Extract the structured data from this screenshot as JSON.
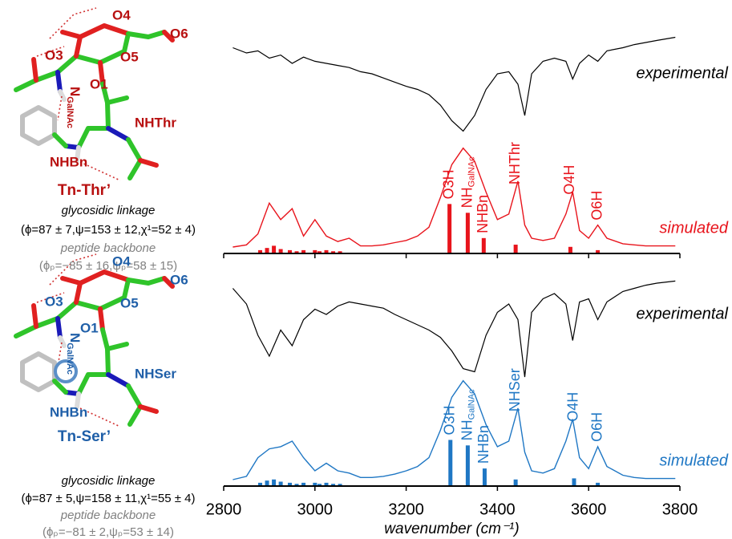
{
  "structures": [
    {
      "labels": [
        "O3",
        "O4",
        "O6",
        "O5",
        "O1",
        {
          "text": "N",
          "sub": "GalNAc"
        },
        "NHThr",
        "NHBn"
      ],
      "name": "Tn-Thr’",
      "linkage": "glycosidic linkage",
      "linkage_values": "(ϕ=87 ± 7,ψ=153 ± 12,χ¹=52 ± 4)",
      "backbone": "peptide backbone",
      "backbone_values": "(ϕₚ=−85 ± 16,ψₚ=58 ± 15)"
    },
    {
      "labels": [
        "O3",
        "O4",
        "O6",
        "O5",
        "O1",
        {
          "text": "N",
          "sub": "GalNAc"
        },
        "NHSer",
        "NHBn"
      ],
      "name": "Tn-Ser’",
      "linkage": "glycosidic linkage",
      "linkage_values": "(ϕ=87 ± 5,ψ=158 ± 11,χ¹=55 ± 4)",
      "backbone": "peptide backbone",
      "backbone_values": "(ϕₚ=−81 ± 2,ψₚ=53 ± 14)"
    }
  ],
  "chart_data": [
    {
      "type": "spectrum",
      "x": [
        2820,
        2850,
        2875,
        2900,
        2925,
        2950,
        2975,
        3000,
        3025,
        3050,
        3075,
        3100,
        3125,
        3150,
        3175,
        3200,
        3225,
        3250,
        3275,
        3300,
        3325,
        3350,
        3375,
        3400,
        3425,
        3445,
        3460,
        3475,
        3500,
        3525,
        3550,
        3565,
        3580,
        3600,
        3620,
        3640,
        3675,
        3700,
        3725,
        3750,
        3790
      ],
      "series": [
        {
          "name": "experimental",
          "color": "#000000",
          "values": [
            0.85,
            0.8,
            0.82,
            0.75,
            0.78,
            0.7,
            0.76,
            0.72,
            0.7,
            0.68,
            0.66,
            0.62,
            0.6,
            0.56,
            0.52,
            0.48,
            0.45,
            0.4,
            0.3,
            0.15,
            0.05,
            0.2,
            0.45,
            0.6,
            0.62,
            0.5,
            0.2,
            0.6,
            0.72,
            0.75,
            0.72,
            0.55,
            0.7,
            0.78,
            0.72,
            0.82,
            0.85,
            0.88,
            0.9,
            0.92,
            0.95
          ]
        },
        {
          "name": "simulated",
          "color": "#e8141c",
          "values": [
            0,
            0.02,
            0.12,
            0.4,
            0.25,
            0.35,
            0.1,
            0.25,
            0.1,
            0.05,
            0.08,
            0.01,
            0.01,
            0.02,
            0.04,
            0.06,
            0.1,
            0.18,
            0.45,
            0.75,
            0.9,
            0.78,
            0.5,
            0.25,
            0.3,
            0.6,
            0.2,
            0.08,
            0.06,
            0.08,
            0.3,
            0.5,
            0.15,
            0.08,
            0.2,
            0.08,
            0.03,
            0.02,
            0.01,
            0.01,
            0.01
          ]
        }
      ],
      "sticks": {
        "x": [
          3295,
          3335,
          3370,
          3440,
          3560,
          3620,
          2880,
          2895,
          2910,
          2925,
          2945,
          2960,
          2975,
          3000,
          3010,
          3025,
          3040,
          3055
        ],
        "values": [
          0.45,
          0.37,
          0.14,
          0.08,
          0.06,
          0.03,
          0.03,
          0.05,
          0.07,
          0.04,
          0.03,
          0.02,
          0.03,
          0.03,
          0.02,
          0.03,
          0.02,
          0.02
        ],
        "labels": [
          "O3H",
          {
            "text": "NH",
            "sub": "GalNAc"
          },
          "NHBn",
          "NHThr",
          "O4H",
          "O6H",
          null,
          null,
          null,
          null,
          null,
          null,
          null,
          null,
          null,
          null,
          null,
          null
        ]
      },
      "xlim": [
        2800,
        3800
      ],
      "xticks": [
        2800,
        3000,
        3200,
        3400,
        3600,
        3800
      ]
    },
    {
      "type": "spectrum",
      "x": [
        2820,
        2850,
        2875,
        2900,
        2925,
        2950,
        2975,
        3000,
        3025,
        3050,
        3075,
        3100,
        3125,
        3150,
        3175,
        3200,
        3225,
        3250,
        3275,
        3300,
        3325,
        3350,
        3375,
        3400,
        3425,
        3445,
        3460,
        3475,
        3500,
        3525,
        3550,
        3565,
        3580,
        3600,
        3620,
        3640,
        3675,
        3700,
        3725,
        3750,
        3790
      ],
      "series": [
        {
          "name": "experimental",
          "color": "#000000",
          "values": [
            0.85,
            0.7,
            0.4,
            0.2,
            0.45,
            0.3,
            0.55,
            0.65,
            0.6,
            0.68,
            0.72,
            0.7,
            0.68,
            0.66,
            0.6,
            0.55,
            0.5,
            0.45,
            0.38,
            0.25,
            0.08,
            0.05,
            0.4,
            0.62,
            0.7,
            0.55,
            0.0,
            0.62,
            0.75,
            0.8,
            0.7,
            0.35,
            0.72,
            0.75,
            0.55,
            0.72,
            0.82,
            0.85,
            0.88,
            0.9,
            0.92
          ]
        },
        {
          "name": "simulated",
          "color": "#1f77c4",
          "values": [
            0,
            0.03,
            0.2,
            0.28,
            0.3,
            0.35,
            0.2,
            0.08,
            0.15,
            0.08,
            0.06,
            0.02,
            0.02,
            0.03,
            0.05,
            0.08,
            0.12,
            0.2,
            0.45,
            0.75,
            0.9,
            0.78,
            0.5,
            0.3,
            0.35,
            0.65,
            0.25,
            0.08,
            0.06,
            0.1,
            0.35,
            0.55,
            0.2,
            0.1,
            0.3,
            0.12,
            0.04,
            0.02,
            0.01,
            0.01,
            0.01
          ]
        }
      ],
      "sticks": {
        "x": [
          3297,
          3335,
          3372,
          3440,
          3568,
          3620,
          2880,
          2895,
          2910,
          2925,
          2945,
          2960,
          2975,
          3000,
          3010,
          3025,
          3040,
          3055
        ],
        "values": [
          0.42,
          0.37,
          0.16,
          0.06,
          0.07,
          0.03,
          0.03,
          0.05,
          0.06,
          0.04,
          0.03,
          0.02,
          0.03,
          0.03,
          0.02,
          0.03,
          0.02,
          0.02
        ],
        "labels": [
          "O3H",
          {
            "text": "NH",
            "sub": "GalNAc"
          },
          "NHBn",
          "NHSer",
          "O4H",
          "O6H",
          null,
          null,
          null,
          null,
          null,
          null,
          null,
          null,
          null,
          null,
          null,
          null
        ]
      },
      "xlim": [
        2800,
        3800
      ],
      "xticks": [
        2800,
        3000,
        3200,
        3400,
        3600,
        3800
      ],
      "xlabel": "wavenumber (cm⁻¹)"
    }
  ]
}
